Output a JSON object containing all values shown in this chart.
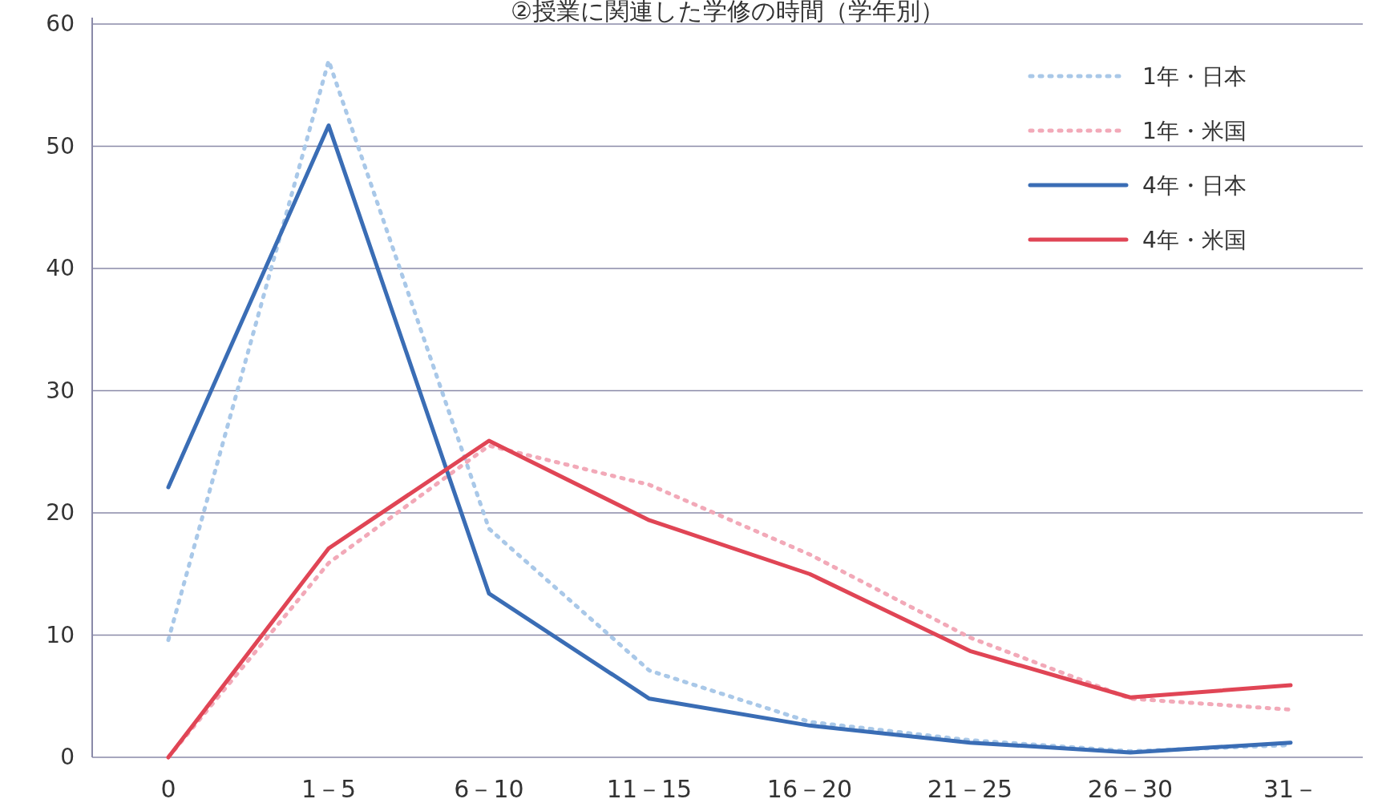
{
  "chart_data": {
    "type": "line",
    "title": "②授業に関連した学修の時間（学年別）",
    "categories": [
      "0",
      "1－5",
      "6－10",
      "11－15",
      "16－20",
      "21－25",
      "26－30",
      "31－"
    ],
    "series": [
      {
        "name": "1年・日本",
        "color": "#a9c8e8",
        "line_style": "dotted",
        "values": [
          9.6,
          57,
          18.7,
          7.1,
          2.9,
          1.4,
          0.5,
          1.0
        ]
      },
      {
        "name": "1年・米国",
        "color": "#f2a9b8",
        "line_style": "dotted",
        "values": [
          0,
          15.9,
          25.5,
          22.3,
          16.6,
          9.8,
          4.8,
          3.9
        ]
      },
      {
        "name": "4年・日本",
        "color": "#3a6db5",
        "line_style": "solid",
        "values": [
          22.1,
          51.7,
          13.4,
          4.8,
          2.6,
          1.2,
          0.4,
          1.2
        ]
      },
      {
        "name": "4年・米国",
        "color": "#e04555",
        "line_style": "solid",
        "values": [
          0,
          17.1,
          25.9,
          19.4,
          15.0,
          8.7,
          4.9,
          5.9
        ]
      }
    ],
    "ylim": [
      0,
      60
    ],
    "yticks": [
      0,
      10,
      20,
      30,
      40,
      50,
      60
    ],
    "grid": "y",
    "legend": "top right",
    "marker": "none"
  }
}
